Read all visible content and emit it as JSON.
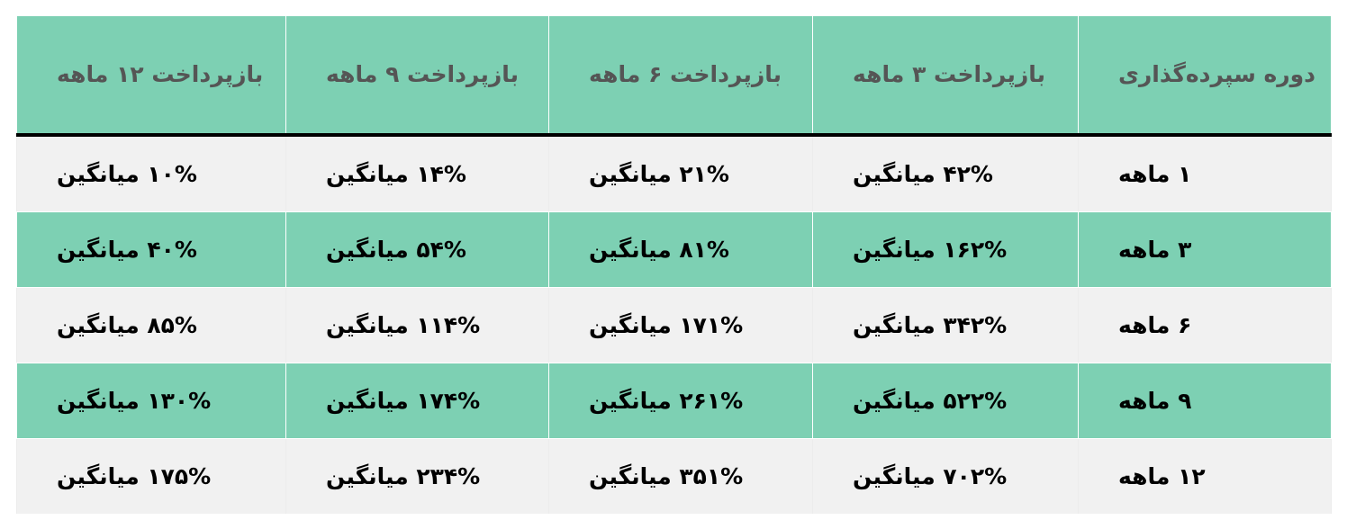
{
  "colors": {
    "header_bg": "#7dd0b3",
    "row_green": "#7dd0b3",
    "row_grey": "#f1f1f1",
    "header_text": "#555555"
  },
  "table": {
    "headers": [
      "دوره سپرده‌گذاری",
      "بازپرداخت ۳ ماهه",
      "بازپرداخت ۶ ماهه",
      "بازپرداخت ۹ ماهه",
      "بازپرداخت ۱۲ ماهه"
    ],
    "rows": [
      [
        "۱ ماهه",
        "۴۲% میانگین",
        "۲۱% میانگین",
        "۱۴% میانگین",
        "۱۰% میانگین"
      ],
      [
        "۳ ماهه",
        "۱۶۲% میانگین",
        "۸۱% میانگین",
        "۵۴% میانگین",
        "۴۰% میانگین"
      ],
      [
        "۶ ماهه",
        "۳۴۲% میانگین",
        "۱۷۱% میانگین",
        "۱۱۴% میانگین",
        "۸۵% میانگین"
      ],
      [
        "۹ ماهه",
        "۵۲۲% میانگین",
        "۲۶۱% میانگین",
        "۱۷۴% میانگین",
        "۱۳۰% میانگین"
      ],
      [
        "۱۲ ماهه",
        "۷۰۲% میانگین",
        "۳۵۱% میانگین",
        "۲۳۴% میانگین",
        "۱۷۵% میانگین"
      ]
    ]
  }
}
